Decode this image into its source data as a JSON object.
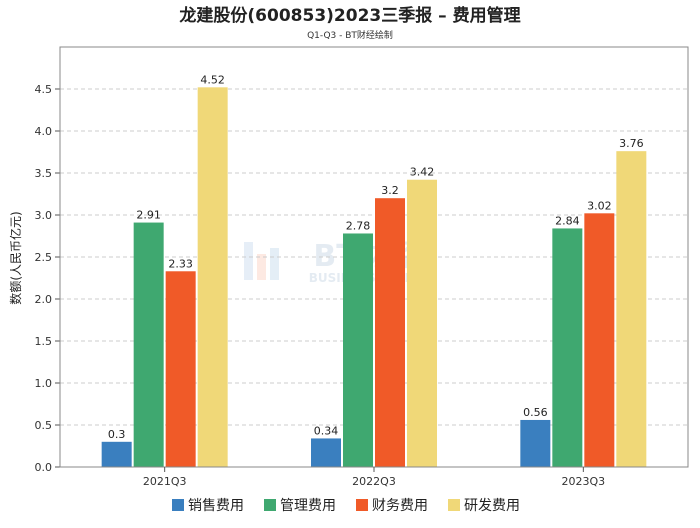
{
  "chart_data": {
    "type": "bar",
    "title": "龙建股份(600853)2023三季报 – 费用管理",
    "subtitle": "Q1-Q3 - BT财经绘制",
    "xlabel": "",
    "ylabel": "数额(人民币亿元)",
    "ylim": [
      0,
      5.0
    ],
    "yticks": [
      0.0,
      0.5,
      1.0,
      1.5,
      2.0,
      2.5,
      3.0,
      3.5,
      4.0,
      4.5
    ],
    "grid": true,
    "legend_position": "bottom",
    "categories": [
      "2021Q3",
      "2022Q3",
      "2023Q3"
    ],
    "series": [
      {
        "name": "销售费用",
        "color": "#3a7fbf",
        "values": [
          0.3,
          0.34,
          0.56
        ]
      },
      {
        "name": "管理费用",
        "color": "#3fa870",
        "values": [
          2.91,
          2.78,
          2.84
        ]
      },
      {
        "name": "财务费用",
        "color": "#f05a28",
        "values": [
          2.33,
          3.2,
          3.02
        ]
      },
      {
        "name": "研发费用",
        "color": "#f0d878",
        "values": [
          4.52,
          3.42,
          3.76
        ]
      }
    ],
    "watermark": {
      "main": "BT财经",
      "sub": "BUSINESS TIMES"
    }
  }
}
